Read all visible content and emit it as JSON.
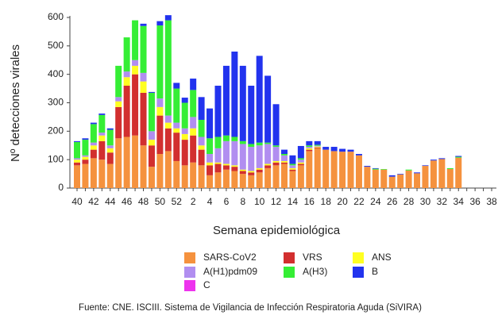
{
  "chart_data": {
    "type": "stacked-bar",
    "y_label": "Nº detecciones virales",
    "x_label": "Semana epidemiológica",
    "source": "Fuente: CNE. ISCIII. Sistema de Vigilancia de Infección Respiratoria Aguda (SiVIRA)",
    "categories": [
      "40",
      null,
      "42",
      null,
      "44",
      null,
      "46",
      null,
      "48",
      null,
      "50",
      null,
      "52",
      null,
      "2",
      null,
      "4",
      null,
      "6",
      null,
      "8",
      null,
      "10",
      null,
      "12",
      null,
      "14",
      null,
      "16",
      null,
      "18",
      null,
      "20",
      null,
      "22",
      null,
      "24",
      null,
      "26",
      null,
      "28",
      null,
      "30",
      null,
      "32",
      null,
      "34",
      null,
      "36",
      null,
      "38"
    ],
    "ylim": [
      0,
      600
    ],
    "yticks": [
      0,
      100,
      200,
      300,
      400,
      500,
      600
    ],
    "series": [
      {
        "name": "SARS-CoV2",
        "color": "#f5923e",
        "values": [
          80,
          85,
          105,
          100,
          85,
          175,
          180,
          185,
          150,
          75,
          120,
          130,
          95,
          80,
          90,
          80,
          45,
          55,
          65,
          60,
          50,
          45,
          55,
          70,
          80,
          85,
          60,
          80,
          130,
          140,
          135,
          130,
          128,
          128,
          115,
          75,
          65,
          65,
          40,
          48,
          62,
          52,
          78,
          97,
          102,
          67,
          107,
          null,
          null,
          null,
          null
        ]
      },
      {
        "name": "VRS",
        "color": "#d22f2f",
        "values": [
          10,
          15,
          30,
          65,
          40,
          110,
          180,
          215,
          185,
          75,
          135,
          80,
          100,
          90,
          95,
          55,
          35,
          30,
          15,
          15,
          10,
          10,
          10,
          10,
          10,
          5,
          5,
          5,
          5,
          3,
          0,
          0,
          0,
          0,
          0,
          0,
          0,
          0,
          0,
          0,
          0,
          0,
          0,
          0,
          0,
          0,
          0,
          null,
          null,
          null,
          null
        ]
      },
      {
        "name": "ANS",
        "color": "#ffff22",
        "values": [
          10,
          10,
          15,
          20,
          15,
          20,
          30,
          30,
          40,
          20,
          30,
          20,
          15,
          20,
          25,
          15,
          10,
          5,
          5,
          5,
          5,
          5,
          5,
          5,
          5,
          5,
          5,
          5,
          5,
          3,
          0,
          0,
          0,
          0,
          0,
          0,
          0,
          0,
          0,
          0,
          0,
          0,
          0,
          0,
          0,
          0,
          0,
          null,
          null,
          null,
          null
        ]
      },
      {
        "name": "A(H1)pdm09",
        "color": "#b18ef0",
        "values": [
          5,
          5,
          10,
          10,
          10,
          15,
          20,
          20,
          30,
          30,
          30,
          25,
          20,
          20,
          40,
          30,
          30,
          50,
          80,
          85,
          90,
          85,
          80,
          70,
          50,
          20,
          10,
          10,
          5,
          3,
          0,
          0,
          0,
          0,
          0,
          0,
          0,
          0,
          0,
          0,
          0,
          0,
          0,
          0,
          0,
          0,
          0,
          null,
          null,
          null,
          null
        ]
      },
      {
        "name": "A(H3)",
        "color": "#35ee35",
        "values": [
          57,
          55,
          65,
          62,
          55,
          110,
          120,
          140,
          165,
          135,
          257,
          335,
          120,
          90,
          95,
          60,
          55,
          40,
          20,
          15,
          10,
          10,
          10,
          5,
          5,
          5,
          5,
          5,
          5,
          3,
          0,
          0,
          0,
          0,
          0,
          0,
          3,
          2,
          0,
          0,
          3,
          0,
          0,
          0,
          0,
          3,
          3,
          null,
          null,
          null,
          null
        ]
      },
      {
        "name": "B",
        "color": "#2233ee",
        "values": [
          3,
          5,
          5,
          5,
          5,
          0,
          0,
          0,
          8,
          3,
          15,
          18,
          20,
          18,
          40,
          80,
          105,
          180,
          245,
          300,
          265,
          205,
          305,
          235,
          145,
          15,
          30,
          43,
          15,
          13,
          10,
          15,
          10,
          7,
          5,
          3,
          2,
          0,
          5,
          2,
          0,
          3,
          2,
          3,
          3,
          0,
          3,
          null,
          null,
          null,
          null
        ]
      },
      {
        "name": "C",
        "color": "#ee33ee",
        "values": [
          0,
          0,
          0,
          0,
          0,
          0,
          0,
          0,
          0,
          0,
          0,
          0,
          0,
          0,
          0,
          0,
          0,
          0,
          0,
          0,
          0,
          0,
          0,
          0,
          0,
          0,
          0,
          0,
          0,
          0,
          0,
          0,
          0,
          0,
          0,
          0,
          0,
          0,
          0,
          0,
          0,
          0,
          0,
          0,
          0,
          0,
          0,
          null,
          null,
          null,
          null
        ]
      }
    ]
  }
}
